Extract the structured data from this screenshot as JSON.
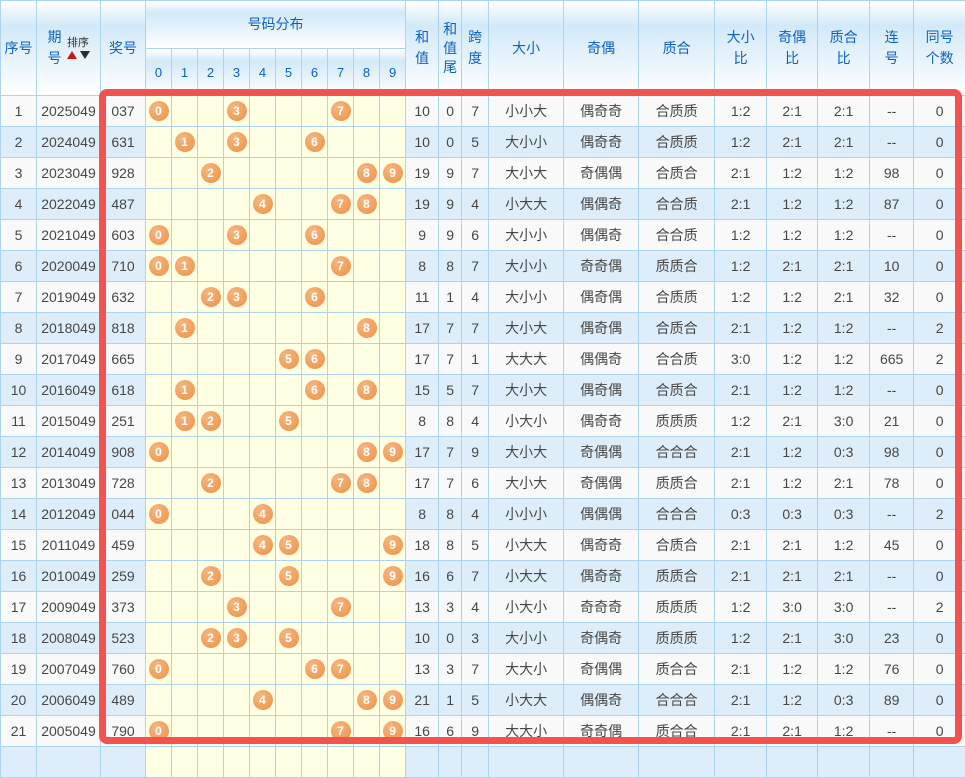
{
  "columns": {
    "index": "序号",
    "period": "期\n号",
    "sort": "排序",
    "prize": "奖号",
    "distribution": "号码分布",
    "digits": [
      "0",
      "1",
      "2",
      "3",
      "4",
      "5",
      "6",
      "7",
      "8",
      "9"
    ],
    "sum": "和\n值",
    "sum_tail": "和\n值\n尾",
    "span": "跨\n度",
    "size": "大小",
    "parity": "奇偶",
    "prime": "质合",
    "size_ratio": "大小\n比",
    "parity_ratio": "奇偶\n比",
    "prime_ratio": "质合\n比",
    "consecutive": "连\n号",
    "same_count": "同号\n个数"
  },
  "colors": {
    "accent_red": "#f2534e",
    "ball_orange": "#ee9246",
    "header_blue": "#0b62c1",
    "grid_blue": "#aed3ec",
    "row_even_blue": "#ddeefa",
    "row_odd_gray": "#f9f9f9",
    "dist_yellow": "#ffffe3"
  },
  "rows": [
    {
      "index": "1",
      "period": "2025049",
      "prize": "037",
      "digits": [
        0,
        3,
        7
      ],
      "sum": "10",
      "tail": "0",
      "span": "7",
      "size": "小小大",
      "parity": "偶奇奇",
      "prime": "合质质",
      "size_ratio": "1:2",
      "parity_ratio": "2:1",
      "prime_ratio": "2:1",
      "consecutive": "--",
      "same": "0"
    },
    {
      "index": "2",
      "period": "2024049",
      "prize": "631",
      "digits": [
        1,
        3,
        6
      ],
      "sum": "10",
      "tail": "0",
      "span": "5",
      "size": "大小小",
      "parity": "偶奇奇",
      "prime": "合质质",
      "size_ratio": "1:2",
      "parity_ratio": "2:1",
      "prime_ratio": "2:1",
      "consecutive": "--",
      "same": "0"
    },
    {
      "index": "3",
      "period": "2023049",
      "prize": "928",
      "digits": [
        2,
        8,
        9
      ],
      "sum": "19",
      "tail": "9",
      "span": "7",
      "size": "大小大",
      "parity": "奇偶偶",
      "prime": "合质合",
      "size_ratio": "2:1",
      "parity_ratio": "1:2",
      "prime_ratio": "1:2",
      "consecutive": "98",
      "same": "0"
    },
    {
      "index": "4",
      "period": "2022049",
      "prize": "487",
      "digits": [
        4,
        7,
        8
      ],
      "sum": "19",
      "tail": "9",
      "span": "4",
      "size": "小大大",
      "parity": "偶偶奇",
      "prime": "合合质",
      "size_ratio": "2:1",
      "parity_ratio": "1:2",
      "prime_ratio": "1:2",
      "consecutive": "87",
      "same": "0"
    },
    {
      "index": "5",
      "period": "2021049",
      "prize": "603",
      "digits": [
        0,
        3,
        6
      ],
      "sum": "9",
      "tail": "9",
      "span": "6",
      "size": "大小小",
      "parity": "偶偶奇",
      "prime": "合合质",
      "size_ratio": "1:2",
      "parity_ratio": "1:2",
      "prime_ratio": "1:2",
      "consecutive": "--",
      "same": "0"
    },
    {
      "index": "6",
      "period": "2020049",
      "prize": "710",
      "digits": [
        0,
        1,
        7
      ],
      "sum": "8",
      "tail": "8",
      "span": "7",
      "size": "大小小",
      "parity": "奇奇偶",
      "prime": "质质合",
      "size_ratio": "1:2",
      "parity_ratio": "2:1",
      "prime_ratio": "2:1",
      "consecutive": "10",
      "same": "0"
    },
    {
      "index": "7",
      "period": "2019049",
      "prize": "632",
      "digits": [
        2,
        3,
        6
      ],
      "sum": "11",
      "tail": "1",
      "span": "4",
      "size": "大小小",
      "parity": "偶奇偶",
      "prime": "合质质",
      "size_ratio": "1:2",
      "parity_ratio": "1:2",
      "prime_ratio": "2:1",
      "consecutive": "32",
      "same": "0"
    },
    {
      "index": "8",
      "period": "2018049",
      "prize": "818",
      "digits": [
        1,
        8
      ],
      "sum": "17",
      "tail": "7",
      "span": "7",
      "size": "大小大",
      "parity": "偶奇偶",
      "prime": "合质合",
      "size_ratio": "2:1",
      "parity_ratio": "1:2",
      "prime_ratio": "1:2",
      "consecutive": "--",
      "same": "2"
    },
    {
      "index": "9",
      "period": "2017049",
      "prize": "665",
      "digits": [
        5,
        6
      ],
      "sum": "17",
      "tail": "7",
      "span": "1",
      "size": "大大大",
      "parity": "偶偶奇",
      "prime": "合合质",
      "size_ratio": "3:0",
      "parity_ratio": "1:2",
      "prime_ratio": "1:2",
      "consecutive": "665",
      "same": "2"
    },
    {
      "index": "10",
      "period": "2016049",
      "prize": "618",
      "digits": [
        1,
        6,
        8
      ],
      "sum": "15",
      "tail": "5",
      "span": "7",
      "size": "大小大",
      "parity": "偶奇偶",
      "prime": "合质合",
      "size_ratio": "2:1",
      "parity_ratio": "1:2",
      "prime_ratio": "1:2",
      "consecutive": "--",
      "same": "0"
    },
    {
      "index": "11",
      "period": "2015049",
      "prize": "251",
      "digits": [
        1,
        2,
        5
      ],
      "sum": "8",
      "tail": "8",
      "span": "4",
      "size": "小大小",
      "parity": "偶奇奇",
      "prime": "质质质",
      "size_ratio": "1:2",
      "parity_ratio": "2:1",
      "prime_ratio": "3:0",
      "consecutive": "21",
      "same": "0"
    },
    {
      "index": "12",
      "period": "2014049",
      "prize": "908",
      "digits": [
        0,
        8,
        9
      ],
      "sum": "17",
      "tail": "7",
      "span": "9",
      "size": "大小大",
      "parity": "奇偶偶",
      "prime": "合合合",
      "size_ratio": "2:1",
      "parity_ratio": "1:2",
      "prime_ratio": "0:3",
      "consecutive": "98",
      "same": "0"
    },
    {
      "index": "13",
      "period": "2013049",
      "prize": "728",
      "digits": [
        2,
        7,
        8
      ],
      "sum": "17",
      "tail": "7",
      "span": "6",
      "size": "大小大",
      "parity": "奇偶偶",
      "prime": "质质合",
      "size_ratio": "2:1",
      "parity_ratio": "1:2",
      "prime_ratio": "2:1",
      "consecutive": "78",
      "same": "0"
    },
    {
      "index": "14",
      "period": "2012049",
      "prize": "044",
      "digits": [
        0,
        4
      ],
      "sum": "8",
      "tail": "8",
      "span": "4",
      "size": "小小小",
      "parity": "偶偶偶",
      "prime": "合合合",
      "size_ratio": "0:3",
      "parity_ratio": "0:3",
      "prime_ratio": "0:3",
      "consecutive": "--",
      "same": "2"
    },
    {
      "index": "15",
      "period": "2011049",
      "prize": "459",
      "digits": [
        4,
        5,
        9
      ],
      "sum": "18",
      "tail": "8",
      "span": "5",
      "size": "小大大",
      "parity": "偶奇奇",
      "prime": "合质合",
      "size_ratio": "2:1",
      "parity_ratio": "2:1",
      "prime_ratio": "1:2",
      "consecutive": "45",
      "same": "0"
    },
    {
      "index": "16",
      "period": "2010049",
      "prize": "259",
      "digits": [
        2,
        5,
        9
      ],
      "sum": "16",
      "tail": "6",
      "span": "7",
      "size": "小大大",
      "parity": "偶奇奇",
      "prime": "质质合",
      "size_ratio": "2:1",
      "parity_ratio": "2:1",
      "prime_ratio": "2:1",
      "consecutive": "--",
      "same": "0"
    },
    {
      "index": "17",
      "period": "2009049",
      "prize": "373",
      "digits": [
        3,
        7
      ],
      "sum": "13",
      "tail": "3",
      "span": "4",
      "size": "小大小",
      "parity": "奇奇奇",
      "prime": "质质质",
      "size_ratio": "1:2",
      "parity_ratio": "3:0",
      "prime_ratio": "3:0",
      "consecutive": "--",
      "same": "2"
    },
    {
      "index": "18",
      "period": "2008049",
      "prize": "523",
      "digits": [
        2,
        3,
        5
      ],
      "sum": "10",
      "tail": "0",
      "span": "3",
      "size": "大小小",
      "parity": "奇偶奇",
      "prime": "质质质",
      "size_ratio": "1:2",
      "parity_ratio": "2:1",
      "prime_ratio": "3:0",
      "consecutive": "23",
      "same": "0"
    },
    {
      "index": "19",
      "period": "2007049",
      "prize": "760",
      "digits": [
        0,
        6,
        7
      ],
      "sum": "13",
      "tail": "3",
      "span": "7",
      "size": "大大小",
      "parity": "奇偶偶",
      "prime": "质合合",
      "size_ratio": "2:1",
      "parity_ratio": "1:2",
      "prime_ratio": "1:2",
      "consecutive": "76",
      "same": "0"
    },
    {
      "index": "20",
      "period": "2006049",
      "prize": "489",
      "digits": [
        4,
        8,
        9
      ],
      "sum": "21",
      "tail": "1",
      "span": "5",
      "size": "小大大",
      "parity": "偶偶奇",
      "prime": "合合合",
      "size_ratio": "2:1",
      "parity_ratio": "1:2",
      "prime_ratio": "0:3",
      "consecutive": "89",
      "same": "0"
    },
    {
      "index": "21",
      "period": "2005049",
      "prize": "790",
      "digits": [
        0,
        7,
        9
      ],
      "sum": "16",
      "tail": "6",
      "span": "9",
      "size": "大大小",
      "parity": "奇奇偶",
      "prime": "质合合",
      "size_ratio": "2:1",
      "parity_ratio": "2:1",
      "prime_ratio": "1:2",
      "consecutive": "--",
      "same": "0"
    }
  ]
}
